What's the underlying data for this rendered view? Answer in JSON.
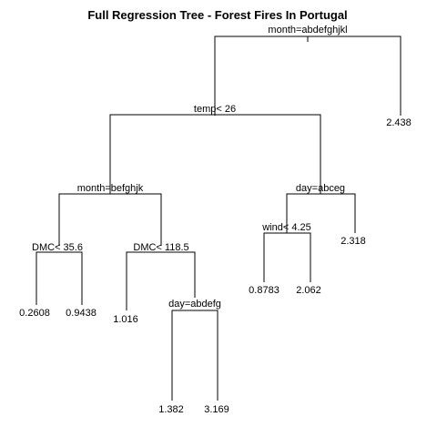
{
  "title": "Full Regression Tree - Forest Fires In Portugal",
  "splits": {
    "root": "month=abdefghjkl",
    "temp": "temp< 26",
    "month2": "month=befghjk",
    "day1": "day=abceg",
    "dmc1": "DMC< 35.6",
    "dmc2": "DMC< 118.5",
    "wind": "wind< 4.25",
    "day2": "day=abdefg"
  },
  "leaves": {
    "l1": "0.2608",
    "l2": "0.9438",
    "l3": "1.016",
    "l4": "1.382",
    "l5": "3.169",
    "l6": "0.8783",
    "l7": "2.062",
    "l8": "2.318",
    "l9": "2.438"
  }
}
